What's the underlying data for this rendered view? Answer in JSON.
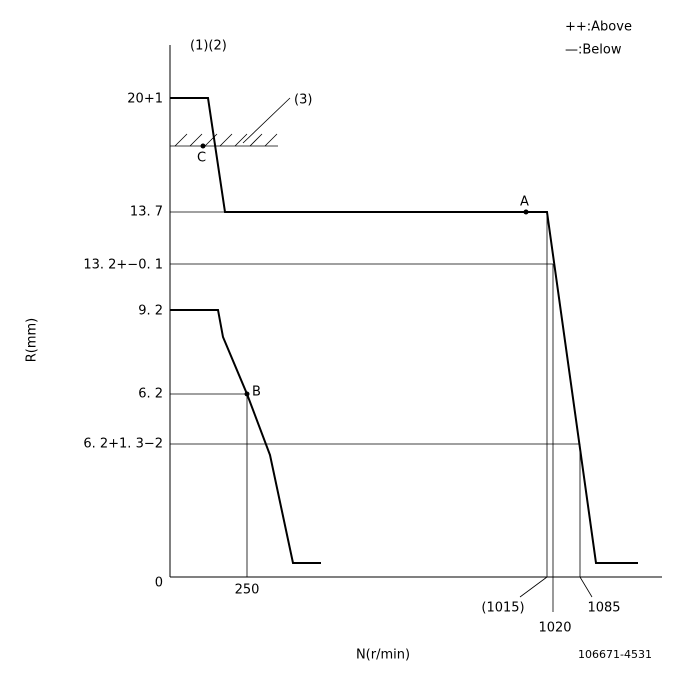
{
  "legend": {
    "above": "++:Above",
    "below": "—:Below"
  },
  "labels": {
    "notes": "(1)(2)",
    "stop": "(3)",
    "point_c": "C",
    "point_a": "A",
    "point_b": "B"
  },
  "y_labels": [
    "20+1",
    "13. 7",
    "13. 2+−0. 1",
    "9. 2",
    "6. 2",
    "6. 2+1. 3−2",
    "0"
  ],
  "x_labels": [
    "250",
    "(1015)",
    "1020",
    "1085"
  ],
  "axis": {
    "y": "R(mm)",
    "x": "N(r/min)"
  },
  "code": "106671-4531"
}
